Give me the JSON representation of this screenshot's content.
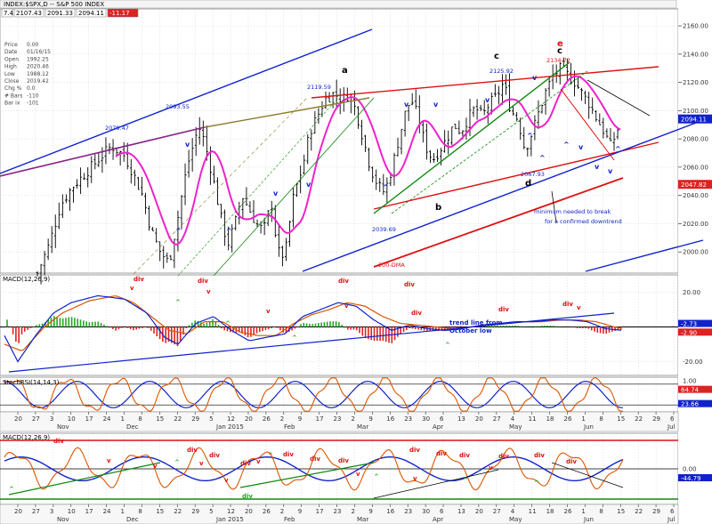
{
  "header": {
    "title": "INDEX:$SPX,D -- S&P 500 INDEX",
    "ohlc_fields": [
      "7.43",
      "2107.43",
      "2091.33",
      "2094.11",
      "-11.17"
    ]
  },
  "info_panel": [
    {
      "label": "Price",
      "value": "0.00"
    },
    {
      "label": "Date",
      "value": "01/16/15"
    },
    {
      "label": "Open",
      "value": "1992.25"
    },
    {
      "label": "High",
      "value": "2020.46"
    },
    {
      "label": "Low",
      "value": "1988.12"
    },
    {
      "label": "Close",
      "value": "2019.42"
    },
    {
      "label": "Chg %",
      "value": "0.0"
    },
    {
      "label": "# Bars",
      "value": "-110"
    },
    {
      "label": "Bar ix",
      "value": "-101"
    }
  ],
  "panels": {
    "macd_top_label": "MACD(12,26,9)",
    "stoch_label": "StochRSI(14,14,3)",
    "macd_bottom_label": "MACD(12,26,9)"
  },
  "colors": {
    "price_bars": "#000000",
    "ma_magenta": "#ee22cc",
    "channel_blue": "#1022cc",
    "channel_red": "#dd1111",
    "channel_green": "#118811",
    "purple_line": "#882288",
    "olive_line": "#8a7a2a",
    "macd_line": "#1022cc",
    "signal_line": "#dd5500",
    "hist_pos": "#22aa22",
    "hist_neg": "#dd2222",
    "last_price_bg": "#1022cc",
    "red_price_bg": "#dd2222"
  },
  "chart_data": [
    {
      "type": "ohlc",
      "title": "INDEX:$SPX,D -- S&P 500 INDEX",
      "y_ticks": [
        2000.0,
        2020.0,
        2040.0,
        2060.0,
        2080.0,
        2100.0,
        2120.0,
        2140.0,
        2160.0
      ],
      "ylim": [
        1985,
        2172
      ],
      "last_price_label": "2094.11",
      "red_price_label": "2047.82",
      "annotations": [
        {
          "text": "2079.47",
          "x": "Nov 28",
          "y": 2079.47,
          "color": "#1022cc"
        },
        {
          "text": "2093.55",
          "x": "Dec 29",
          "y": 2093.55,
          "color": "#1022cc"
        },
        {
          "text": "2119.59",
          "x": "Feb 25",
          "y": 2119.59,
          "color": "#1022cc"
        },
        {
          "text": "2039.69",
          "x": "Mar 11",
          "y": 2039.69,
          "color": "#1022cc"
        },
        {
          "text": "2125.92",
          "x": "Apr 24",
          "y": 2125.92,
          "color": "#1022cc"
        },
        {
          "text": "2067.93",
          "x": "May 6",
          "y": 2067.93,
          "color": "#1022cc"
        },
        {
          "text": "2134.72",
          "x": "May 20",
          "y": 2134.72,
          "color": "#dd1111"
        },
        {
          "text": "a",
          "color": "#000000"
        },
        {
          "text": "b",
          "color": "#000000"
        },
        {
          "text": "c",
          "color": "#000000"
        },
        {
          "text": "d",
          "color": "#000000"
        },
        {
          "text": "e",
          "color": "#dd1111"
        },
        {
          "text": "c",
          "color": "#000000"
        },
        {
          "text": "minimum needed to break",
          "color": "#1022cc"
        },
        {
          "text": "for a confirmed downtrend",
          "color": "#1022cc"
        },
        {
          "text": "200-DMA",
          "color": "#dd1111"
        }
      ],
      "small_marks": [
        "v",
        "v",
        "v",
        "v",
        "v",
        "v",
        "v",
        "^",
        "^",
        "^",
        "^",
        "^",
        "^",
        "v",
        "v",
        "v",
        "^"
      ]
    },
    {
      "type": "line",
      "title": "MACD(12,26,9)",
      "y_ticks": [
        20.0,
        -20.0
      ],
      "ylim": [
        -28,
        30
      ],
      "last_values": [
        "-2.73",
        "-2.90"
      ],
      "annotations": [
        "div",
        "div",
        "div",
        "div",
        "div",
        "div",
        "div",
        "v",
        "v",
        "v",
        "v",
        "v",
        "^",
        "^",
        "^",
        "^",
        "^",
        "trend line from",
        "October low"
      ]
    },
    {
      "type": "line",
      "title": "StochRSI(14,14,3)",
      "last_values": [
        "64.74",
        "23.66"
      ],
      "y_ticks": [
        "1.00"
      ]
    },
    {
      "type": "line",
      "title": "MACD(12,26,9)",
      "y_ticks": [
        0.0
      ],
      "last_values": [
        "-44.79"
      ],
      "annotations": [
        "div",
        "div",
        "div",
        "div",
        "div",
        "div",
        "div",
        "div",
        "div",
        "div",
        "div",
        "div",
        "div",
        "v",
        "v",
        "v",
        "v",
        "v",
        "v",
        "v",
        "v",
        "^",
        "^",
        "^",
        "^",
        "^",
        "^",
        "div"
      ]
    }
  ],
  "x_axis": {
    "day_ticks": [
      "20",
      "27",
      "3",
      "10",
      "17",
      "24",
      "1",
      "8",
      "15",
      "22",
      "29",
      "5",
      "12",
      "20",
      "26",
      "2",
      "9",
      "17",
      "23",
      "2",
      "9",
      "16",
      "23",
      "30",
      "6",
      "13",
      "20",
      "27",
      "4",
      "11",
      "18",
      "26",
      "1",
      "8",
      "15",
      "22",
      "29",
      "6"
    ],
    "month_labels": [
      "Nov",
      "Dec",
      "Jan 2015",
      "Feb",
      "Mar",
      "Apr",
      "May",
      "Jun",
      "Jul"
    ]
  }
}
